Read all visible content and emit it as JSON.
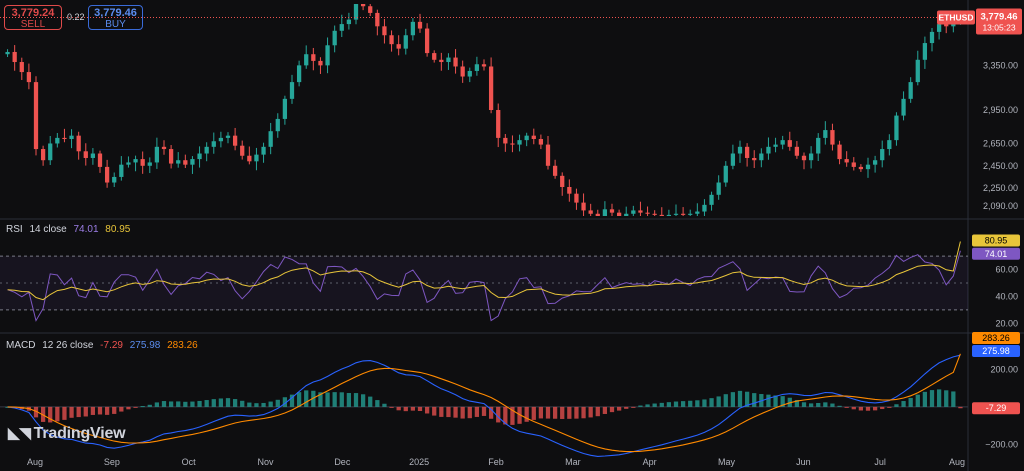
{
  "trade": {
    "sell_price": "3,779.24",
    "sell_label": "SELL",
    "spread": "0.22",
    "buy_price": "3,779.46",
    "buy_label": "BUY"
  },
  "symbol_tag": "ETHUSD",
  "last_price": "3,779.46",
  "countdown": "13:05:23",
  "brand": "TradingView",
  "colors": {
    "up": "#26a69a",
    "down": "#ef5350",
    "rsi": "#7e57c2",
    "rsi_ma": "#e8c53a",
    "macd": "#2962ff",
    "signal": "#ff8a00"
  },
  "chart_data": [
    {
      "type": "candlestick",
      "price_ticks": [
        "3,350.00",
        "2,950.00",
        "2,650.00",
        "2,450.00",
        "2,250.00",
        "2,090.00"
      ],
      "price_tick_values": [
        3350,
        2950,
        2650,
        2450,
        2250,
        2090
      ],
      "x_labels": [
        "Aug",
        "Sep",
        "Oct",
        "Nov",
        "Dec",
        "2025",
        "Feb",
        "Mar",
        "Apr",
        "May",
        "Jun",
        "Jul",
        "Aug"
      ],
      "ylim": [
        2000,
        3900
      ],
      "closes": [
        3470,
        3380,
        3290,
        3200,
        2600,
        2500,
        2650,
        2700,
        2690,
        2720,
        2580,
        2520,
        2560,
        2440,
        2300,
        2350,
        2460,
        2480,
        2510,
        2450,
        2480,
        2620,
        2600,
        2470,
        2500,
        2460,
        2510,
        2560,
        2620,
        2670,
        2700,
        2720,
        2630,
        2540,
        2490,
        2550,
        2620,
        2760,
        2870,
        3050,
        3200,
        3350,
        3450,
        3390,
        3350,
        3530,
        3660,
        3720,
        3760,
        3900,
        3880,
        3820,
        3700,
        3620,
        3540,
        3500,
        3620,
        3740,
        3680,
        3460,
        3400,
        3380,
        3420,
        3340,
        3250,
        3300,
        3360,
        3340,
        2950,
        2700,
        2650,
        2640,
        2680,
        2720,
        2690,
        2640,
        2450,
        2360,
        2260,
        2200,
        2120,
        2050,
        2020,
        2000,
        2060,
        2030,
        2000,
        2020,
        2050,
        2030,
        2020,
        2010,
        2000,
        2010,
        2020,
        2010,
        2020,
        2040,
        2100,
        2190,
        2300,
        2450,
        2560,
        2620,
        2520,
        2500,
        2560,
        2620,
        2640,
        2680,
        2620,
        2540,
        2500,
        2560,
        2700,
        2770,
        2640,
        2510,
        2480,
        2440,
        2420,
        2460,
        2500,
        2600,
        2680,
        2900,
        3050,
        3200,
        3400,
        3550,
        3650,
        3720,
        3700,
        3760,
        3779.46
      ],
      "rsi": {
        "label": "RSI",
        "params": "14 close",
        "value": 74.01,
        "ma_value": 80.95,
        "ticks": [
          "60.00",
          "40.00",
          "20.00"
        ],
        "tick_values": [
          60,
          40,
          20
        ],
        "upper_band": 70,
        "lower_band": 30,
        "ylim": [
          15,
          88
        ]
      },
      "macd": {
        "label": "MACD",
        "params": "12 26 close",
        "histogram": -7.29,
        "macd": 275.98,
        "signal": 283.26,
        "ticks": [
          "200.00",
          "−200.00"
        ],
        "tick_values": [
          200,
          -200
        ],
        "ylim": [
          -230,
          330
        ]
      }
    }
  ]
}
